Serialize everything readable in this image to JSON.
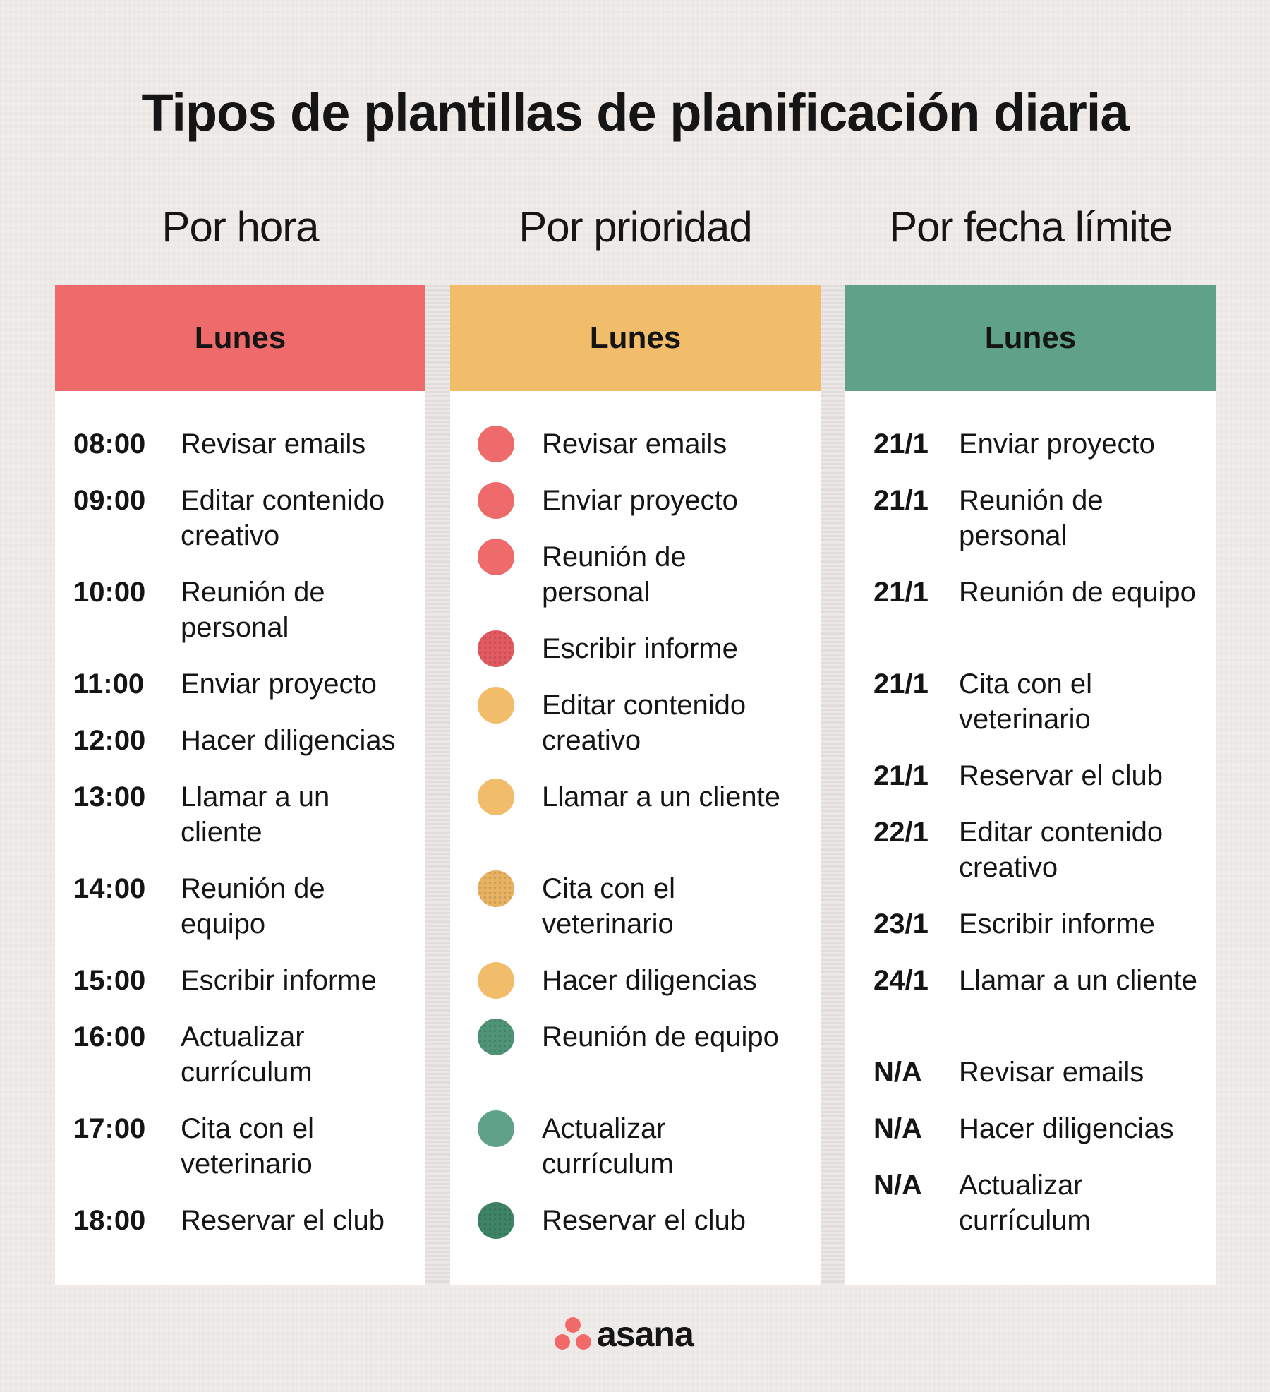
{
  "title": "Tipos de plantillas de planificación diaria",
  "colors": {
    "red": "#ef6b6b",
    "yellow": "#f2bd6a",
    "green": "#5fa287",
    "dark_green": "#3f8466",
    "background": "#efecea"
  },
  "columns": [
    {
      "subtitle": "Por hora",
      "header": "Lunes",
      "header_color": "#ef6b6b",
      "rows": [
        {
          "label": "08:00",
          "task": "Revisar emails",
          "lines": 1
        },
        {
          "label": "09:00",
          "task": "Editar contenido creativo",
          "lines": 2
        },
        {
          "label": "10:00",
          "task": "Reunión de personal",
          "lines": 2
        },
        {
          "label": "11:00",
          "task": "Enviar proyecto",
          "lines": 1
        },
        {
          "label": "12:00",
          "task": "Hacer diligencias",
          "lines": 1
        },
        {
          "label": "13:00",
          "task": "Llamar a un cliente",
          "lines": 2
        },
        {
          "label": "14:00",
          "task": "Reunión de equipo",
          "lines": 2
        },
        {
          "label": "15:00",
          "task": "Escribir informe",
          "lines": 1
        },
        {
          "label": "16:00",
          "task": "Actualizar currículum",
          "lines": 2
        },
        {
          "label": "17:00",
          "task": "Cita con el veterinario",
          "lines": 2
        },
        {
          "label": "18:00",
          "task": "Reservar el club",
          "lines": 1
        }
      ]
    },
    {
      "subtitle": "Por prioridad",
      "header": "Lunes",
      "header_color": "#f2bd6a",
      "rows": [
        {
          "priority": "high",
          "dot_color": "#ef6b6b",
          "textured": false,
          "task": "Revisar emails",
          "lines": 1
        },
        {
          "priority": "high",
          "dot_color": "#ef6b6b",
          "textured": false,
          "task": "Enviar proyecto",
          "lines": 1
        },
        {
          "priority": "high",
          "dot_color": "#ef6b6b",
          "textured": false,
          "task": "Reunión de personal",
          "lines": 2
        },
        {
          "priority": "high",
          "dot_color": "#e25b61",
          "textured": true,
          "task": "Escribir informe",
          "lines": 1
        },
        {
          "priority": "medium",
          "dot_color": "#f2bd6a",
          "textured": false,
          "task": "Editar contenido creativo",
          "lines": 2
        },
        {
          "priority": "medium",
          "dot_color": "#f2bd6a",
          "textured": false,
          "task": "Llamar a un cliente",
          "lines": 2
        },
        {
          "priority": "medium",
          "dot_color": "#e9b263",
          "textured": true,
          "task": "Cita con el veterinario",
          "lines": 2
        },
        {
          "priority": "medium",
          "dot_color": "#f2bd6a",
          "textured": false,
          "task": "Hacer diligencias",
          "lines": 1
        },
        {
          "priority": "low",
          "dot_color": "#4f9477",
          "textured": true,
          "task": "Reunión de equipo",
          "lines": 2
        },
        {
          "priority": "low",
          "dot_color": "#5fa287",
          "textured": false,
          "task": "Actualizar currículum",
          "lines": 2
        },
        {
          "priority": "low",
          "dot_color": "#3f8466",
          "textured": true,
          "task": "Reservar el club",
          "lines": 1
        }
      ]
    },
    {
      "subtitle": "Por fecha límite",
      "header": "Lunes",
      "header_color": "#5fa287",
      "rows": [
        {
          "label": "21/1",
          "task": "Enviar proyecto",
          "lines": 1
        },
        {
          "label": "21/1",
          "task": "Reunión de personal",
          "lines": 2
        },
        {
          "label": "21/1",
          "task": "Reunión de equipo",
          "lines": 2
        },
        {
          "label": "21/1",
          "task": "Cita con el veterinario",
          "lines": 2
        },
        {
          "label": "21/1",
          "task": "Reservar el club",
          "lines": 1
        },
        {
          "label": "22/1",
          "task": "Editar contenido creativo",
          "lines": 2
        },
        {
          "label": "23/1",
          "task": "Escribir informe",
          "lines": 1
        },
        {
          "label": "24/1",
          "task": "Llamar a un cliente",
          "lines": 2
        },
        {
          "label": "N/A",
          "task": "Revisar emails",
          "lines": 1
        },
        {
          "label": "N/A",
          "task": "Hacer diligencias",
          "lines": 1
        },
        {
          "label": "N/A",
          "task": "Actualizar currículum",
          "lines": 2
        }
      ]
    }
  ],
  "logo": {
    "text": "asana",
    "mark_color": "#f06a6a"
  }
}
